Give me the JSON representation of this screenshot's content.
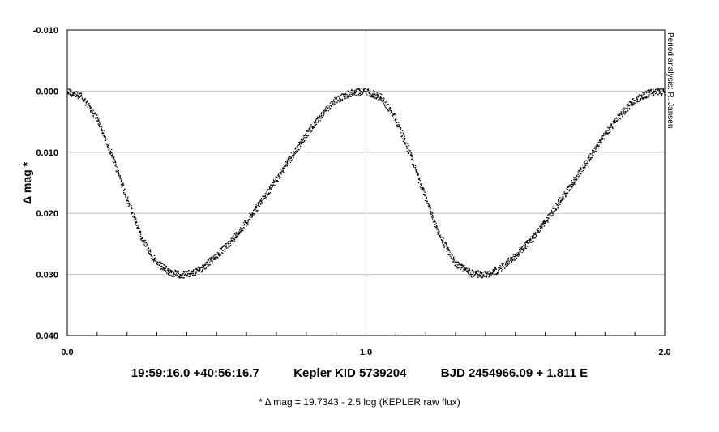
{
  "chart_data": {
    "type": "scatter",
    "title": "",
    "xlabel": "",
    "ylabel": "Δ mag *",
    "xlim": [
      0.0,
      2.0
    ],
    "ylim": [
      -0.01,
      0.04
    ],
    "y_inverted": true,
    "x_ticks": [
      "0.0",
      "1.0",
      "2.0"
    ],
    "y_ticks": [
      "-0.010",
      "0.000",
      "0.010",
      "0.020",
      "0.030",
      "0.040"
    ],
    "grid": true,
    "series": [
      {
        "marker_color": "#000000",
        "x": [
          0.0,
          0.05,
          0.1,
          0.15,
          0.2,
          0.25,
          0.3,
          0.35,
          0.38,
          0.4,
          0.43,
          0.45,
          0.5,
          0.55,
          0.6,
          0.65,
          0.7,
          0.75,
          0.8,
          0.85,
          0.9,
          0.95,
          1.0
        ],
        "y": [
          0.0,
          0.001,
          0.0045,
          0.0105,
          0.0175,
          0.024,
          0.0282,
          0.0298,
          0.03,
          0.03,
          0.0296,
          0.029,
          0.027,
          0.0245,
          0.0215,
          0.018,
          0.0145,
          0.0108,
          0.0072,
          0.004,
          0.0015,
          0.0003,
          0.0
        ]
      }
    ],
    "period_repeats": 2,
    "side_note": "Period analysis: R. Jansen"
  },
  "caption": {
    "coords": "19:59:16.0 +40:56:16.7",
    "kid": "Kepler KID 5739204",
    "ephemeris": "BJD 2454966.09 + 1.811 E",
    "footnote": "* Δ mag = 19.7343 - 2.5 log (KEPLER raw flux)"
  },
  "colors": {
    "grid": "#c0c0c0",
    "points": "#000000",
    "frame": "#000000"
  }
}
